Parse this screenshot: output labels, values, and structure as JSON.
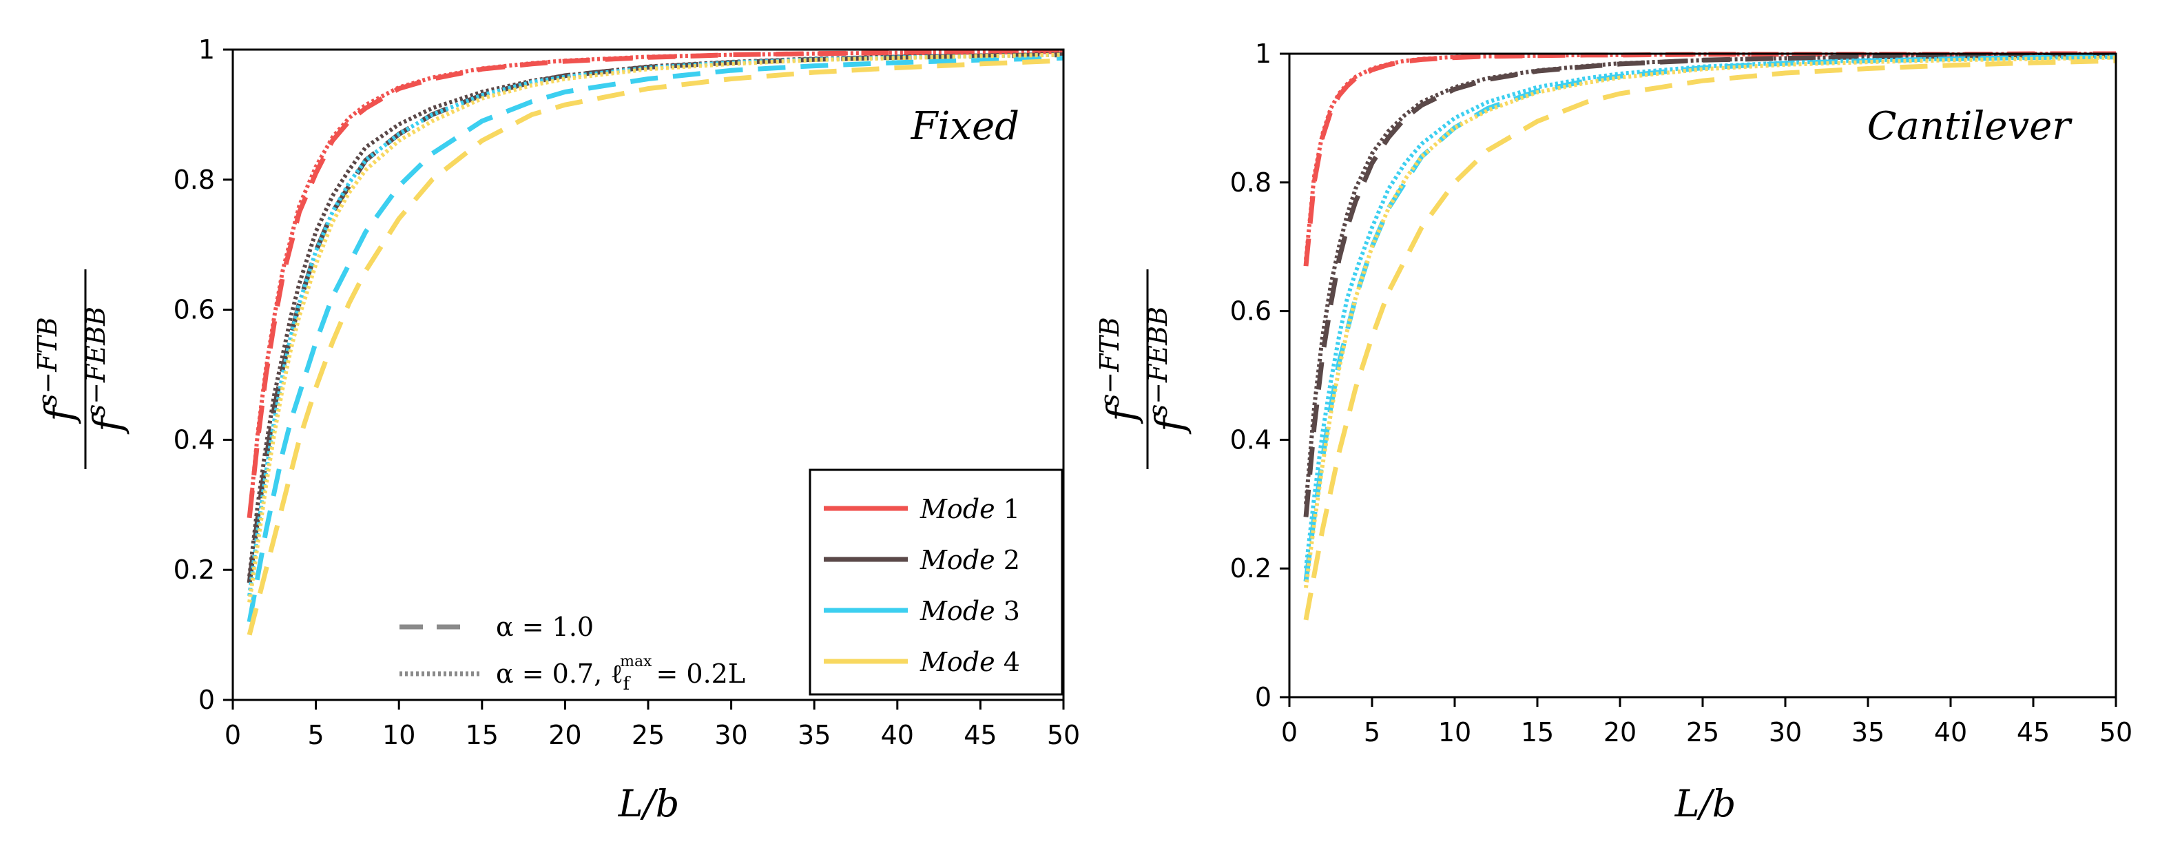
{
  "colors": {
    "mode1": "#f0524f",
    "mode2": "#5a4848",
    "mode3": "#3ccff0",
    "mode4": "#f8d860",
    "grey": "#8a8a8a"
  },
  "chart_data": [
    {
      "type": "line",
      "title": "Fixed",
      "xlabel": "L/b",
      "ylabel": {
        "numerator": "f^{s-FTB}",
        "denominator": "f^{s-FEBB}"
      },
      "xlim": [
        0,
        50
      ],
      "ylim": [
        0,
        1
      ],
      "xticks": [
        0,
        5,
        10,
        15,
        20,
        25,
        30,
        35,
        40,
        45,
        50
      ],
      "yticks": [
        0,
        0.2,
        0.4,
        0.6,
        0.8,
        1
      ],
      "ytick_labels": [
        "0",
        "0.2",
        "0.4",
        "0.6",
        "0.8",
        "1"
      ],
      "x": [
        1,
        1.5,
        2,
        2.5,
        3,
        3.5,
        4,
        5,
        6,
        7,
        8,
        10,
        12,
        15,
        18,
        20,
        25,
        30,
        35,
        40,
        45,
        50
      ],
      "series": [
        {
          "name": "Mode 1",
          "style": "alpha=1.0",
          "color_key": "mode1",
          "values": [
            0.28,
            0.4,
            0.5,
            0.58,
            0.65,
            0.7,
            0.75,
            0.81,
            0.86,
            0.89,
            0.91,
            0.94,
            0.955,
            0.97,
            0.978,
            0.982,
            0.988,
            0.992,
            0.994,
            0.995,
            0.996,
            0.997
          ]
        },
        {
          "name": "Mode 1",
          "style": "alpha=0.7, l_f^max=0.2L",
          "color_key": "mode1",
          "values": [
            0.28,
            0.41,
            0.51,
            0.59,
            0.66,
            0.71,
            0.76,
            0.82,
            0.865,
            0.895,
            0.915,
            0.942,
            0.957,
            0.971,
            0.979,
            0.983,
            0.989,
            0.992,
            0.994,
            0.995,
            0.996,
            0.997
          ]
        },
        {
          "name": "Mode 2",
          "style": "alpha=1.0",
          "color_key": "mode2",
          "values": [
            0.18,
            0.28,
            0.37,
            0.45,
            0.51,
            0.56,
            0.61,
            0.69,
            0.75,
            0.79,
            0.83,
            0.87,
            0.9,
            0.93,
            0.95,
            0.96,
            0.973,
            0.98,
            0.985,
            0.988,
            0.99,
            0.992
          ]
        },
        {
          "name": "Mode 2",
          "style": "alpha=0.7, l_f^max=0.2L",
          "color_key": "mode2",
          "values": [
            0.19,
            0.3,
            0.39,
            0.47,
            0.53,
            0.59,
            0.64,
            0.72,
            0.775,
            0.815,
            0.85,
            0.885,
            0.91,
            0.935,
            0.952,
            0.96,
            0.974,
            0.981,
            0.986,
            0.989,
            0.991,
            0.993
          ]
        },
        {
          "name": "Mode 3",
          "style": "alpha=1.0",
          "color_key": "mode3",
          "values": [
            0.12,
            0.19,
            0.26,
            0.32,
            0.38,
            0.43,
            0.47,
            0.55,
            0.62,
            0.67,
            0.72,
            0.79,
            0.84,
            0.89,
            0.92,
            0.935,
            0.955,
            0.968,
            0.975,
            0.98,
            0.984,
            0.987
          ]
        },
        {
          "name": "Mode 3",
          "style": "alpha=0.7, l_f^max=0.2L",
          "color_key": "mode3",
          "values": [
            0.16,
            0.26,
            0.35,
            0.43,
            0.5,
            0.56,
            0.61,
            0.69,
            0.75,
            0.795,
            0.83,
            0.87,
            0.9,
            0.93,
            0.95,
            0.958,
            0.972,
            0.98,
            0.985,
            0.988,
            0.99,
            0.992
          ]
        },
        {
          "name": "Mode 4",
          "style": "alpha=1.0",
          "color_key": "mode4",
          "values": [
            0.1,
            0.15,
            0.2,
            0.25,
            0.3,
            0.35,
            0.4,
            0.48,
            0.55,
            0.61,
            0.66,
            0.74,
            0.8,
            0.86,
            0.9,
            0.915,
            0.94,
            0.955,
            0.965,
            0.972,
            0.978,
            0.983
          ]
        },
        {
          "name": "Mode 4",
          "style": "alpha=0.7, l_f^max=0.2L",
          "color_key": "mode4",
          "values": [
            0.15,
            0.24,
            0.33,
            0.41,
            0.48,
            0.54,
            0.59,
            0.67,
            0.735,
            0.78,
            0.815,
            0.86,
            0.89,
            0.925,
            0.945,
            0.955,
            0.97,
            0.978,
            0.984,
            0.987,
            0.99,
            0.992
          ]
        }
      ],
      "legend": {
        "position": "bottom-right",
        "entries": [
          {
            "label_italic": "Mode",
            "label_num": "1",
            "color_key": "mode1"
          },
          {
            "label_italic": "Mode",
            "label_num": "2",
            "color_key": "mode2"
          },
          {
            "label_italic": "Mode",
            "label_num": "3",
            "color_key": "mode3"
          },
          {
            "label_italic": "Mode",
            "label_num": "4",
            "color_key": "mode4"
          }
        ],
        "style_entries": [
          {
            "label": "α = 1.0",
            "dash": "dashed"
          },
          {
            "label": "α = 0.7, ℓ",
            "sub": "f",
            "sup": "max",
            "tail": "= 0.2L",
            "dash": "dotted"
          }
        ]
      }
    },
    {
      "type": "line",
      "title": "Cantilever",
      "xlabel": "L/b",
      "ylabel": {
        "numerator": "f^{s-FTB}",
        "denominator": "f^{s-FEBB}"
      },
      "xlim": [
        0,
        50
      ],
      "ylim": [
        0,
        1
      ],
      "xticks": [
        0,
        5,
        10,
        15,
        20,
        25,
        30,
        35,
        40,
        45,
        50
      ],
      "yticks": [
        0,
        0.2,
        0.4,
        0.6,
        0.8,
        1
      ],
      "ytick_labels": [
        "0",
        "0.2",
        "0.4",
        "0.6",
        "0.8",
        "1"
      ],
      "x": [
        1,
        1.5,
        2,
        2.5,
        3,
        3.5,
        4,
        5,
        6,
        7,
        8,
        10,
        12,
        15,
        18,
        20,
        25,
        30,
        35,
        40,
        45,
        50
      ],
      "series": [
        {
          "name": "Mode 1",
          "style": "alpha=1.0",
          "color_key": "mode1",
          "values": [
            0.67,
            0.8,
            0.87,
            0.91,
            0.935,
            0.95,
            0.962,
            0.975,
            0.983,
            0.988,
            0.991,
            0.994,
            0.996,
            0.997,
            0.998,
            0.998,
            0.999,
            0.999,
            0.999,
            0.999,
            1.0,
            1.0
          ]
        },
        {
          "name": "Mode 1",
          "style": "alpha=0.7, l_f^max=0.2L",
          "color_key": "mode1",
          "values": [
            0.68,
            0.81,
            0.875,
            0.915,
            0.938,
            0.953,
            0.964,
            0.977,
            0.984,
            0.989,
            0.992,
            0.995,
            0.996,
            0.997,
            0.998,
            0.998,
            0.999,
            0.999,
            0.999,
            0.999,
            1.0,
            1.0
          ]
        },
        {
          "name": "Mode 2",
          "style": "alpha=1.0",
          "color_key": "mode2",
          "values": [
            0.28,
            0.42,
            0.53,
            0.61,
            0.68,
            0.73,
            0.77,
            0.83,
            0.87,
            0.9,
            0.92,
            0.945,
            0.96,
            0.973,
            0.98,
            0.984,
            0.99,
            0.993,
            0.995,
            0.996,
            0.997,
            0.998
          ]
        },
        {
          "name": "Mode 2",
          "style": "alpha=0.7, l_f^max=0.2L",
          "color_key": "mode2",
          "values": [
            0.3,
            0.45,
            0.56,
            0.64,
            0.7,
            0.75,
            0.79,
            0.845,
            0.88,
            0.905,
            0.925,
            0.948,
            0.962,
            0.974,
            0.981,
            0.985,
            0.99,
            0.993,
            0.995,
            0.996,
            0.997,
            0.998
          ]
        },
        {
          "name": "Mode 3",
          "style": "alpha=1.0",
          "color_key": "mode3",
          "values": [
            0.18,
            0.28,
            0.37,
            0.45,
            0.52,
            0.57,
            0.62,
            0.7,
            0.76,
            0.8,
            0.84,
            0.885,
            0.915,
            0.942,
            0.958,
            0.965,
            0.978,
            0.985,
            0.989,
            0.992,
            0.994,
            0.995
          ]
        },
        {
          "name": "Mode 3",
          "style": "alpha=0.7, l_f^max=0.2L",
          "color_key": "mode3",
          "values": [
            0.2,
            0.31,
            0.41,
            0.49,
            0.56,
            0.62,
            0.66,
            0.73,
            0.79,
            0.83,
            0.86,
            0.9,
            0.925,
            0.948,
            0.962,
            0.969,
            0.98,
            0.986,
            0.99,
            0.992,
            0.994,
            0.995
          ]
        },
        {
          "name": "Mode 4",
          "style": "alpha=1.0",
          "color_key": "mode4",
          "values": [
            0.12,
            0.19,
            0.26,
            0.32,
            0.38,
            0.43,
            0.48,
            0.56,
            0.63,
            0.68,
            0.73,
            0.8,
            0.85,
            0.895,
            0.925,
            0.938,
            0.958,
            0.97,
            0.977,
            0.982,
            0.986,
            0.989
          ]
        },
        {
          "name": "Mode 4",
          "style": "alpha=0.7, l_f^max=0.2L",
          "color_key": "mode4",
          "values": [
            0.17,
            0.27,
            0.36,
            0.44,
            0.51,
            0.57,
            0.62,
            0.7,
            0.76,
            0.805,
            0.84,
            0.885,
            0.912,
            0.94,
            0.955,
            0.963,
            0.976,
            0.983,
            0.987,
            0.99,
            0.992,
            0.994
          ]
        }
      ]
    }
  ]
}
